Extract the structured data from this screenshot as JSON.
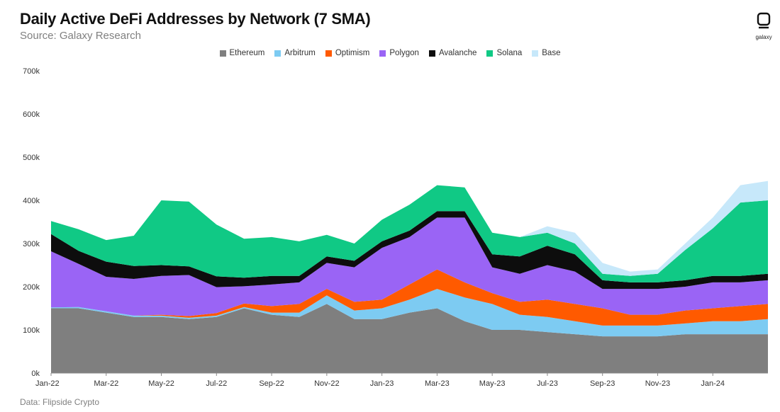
{
  "header": {
    "title": "Daily Active DeFi Addresses by Network (7 SMA)",
    "subtitle": "Source: Galaxy Research",
    "logo_text": "galaxy"
  },
  "footer": {
    "data_source": "Data: Flipside Crypto"
  },
  "chart_data": {
    "type": "area",
    "stacked": true,
    "title": "Daily Active DeFi Addresses by Network (7 SMA)",
    "xlabel": "",
    "ylabel": "",
    "ylim": [
      0,
      700000
    ],
    "yticks": [
      0,
      100000,
      200000,
      300000,
      400000,
      500000,
      600000,
      700000
    ],
    "ytick_labels": [
      "0k",
      "100k",
      "200k",
      "300k",
      "400k",
      "500k",
      "600k",
      "700k"
    ],
    "xtick_labels": [
      "Jan-22",
      "Mar-22",
      "May-22",
      "Jul-22",
      "Sep-22",
      "Nov-22",
      "Jan-23",
      "Mar-23",
      "May-23",
      "Jul-23",
      "Sep-23",
      "Nov-23",
      "Jan-24"
    ],
    "legend_position": "top-center",
    "grid": false,
    "x": [
      "Jan-22",
      "Feb-22",
      "Mar-22",
      "Apr-22",
      "May-22",
      "Jun-22",
      "Jul-22",
      "Aug-22",
      "Sep-22",
      "Oct-22",
      "Nov-22",
      "Dec-22",
      "Jan-23",
      "Feb-23",
      "Mar-23",
      "Apr-23",
      "May-23",
      "Jun-23",
      "Jul-23",
      "Aug-23",
      "Sep-23",
      "Oct-23",
      "Nov-23",
      "Dec-23",
      "Jan-24",
      "Feb-24",
      "Mar-24"
    ],
    "series": [
      {
        "name": "Ethereum",
        "color": "#7f7f7f",
        "values": [
          150000,
          150000,
          140000,
          130000,
          130000,
          125000,
          130000,
          150000,
          135000,
          130000,
          160000,
          125000,
          125000,
          140000,
          150000,
          120000,
          100000,
          100000,
          95000,
          90000,
          85000,
          85000,
          85000,
          90000,
          90000,
          90000,
          90000
        ]
      },
      {
        "name": "Arbitrum",
        "color": "#7dcbf2",
        "values": [
          2000,
          3000,
          3000,
          3000,
          3000,
          3000,
          3000,
          3000,
          5000,
          10000,
          20000,
          20000,
          25000,
          30000,
          45000,
          55000,
          60000,
          35000,
          35000,
          30000,
          25000,
          25000,
          25000,
          25000,
          30000,
          30000,
          35000
        ]
      },
      {
        "name": "Optimism",
        "color": "#ff5a00",
        "values": [
          0,
          0,
          0,
          0,
          2000,
          4000,
          6000,
          8000,
          15000,
          20000,
          15000,
          20000,
          20000,
          35000,
          45000,
          35000,
          25000,
          30000,
          40000,
          40000,
          40000,
          25000,
          25000,
          30000,
          30000,
          35000,
          35000
        ]
      },
      {
        "name": "Polygon",
        "color": "#9a64f5",
        "values": [
          130000,
          100000,
          80000,
          85000,
          90000,
          95000,
          60000,
          40000,
          50000,
          50000,
          60000,
          80000,
          120000,
          110000,
          120000,
          150000,
          60000,
          65000,
          80000,
          75000,
          45000,
          60000,
          60000,
          55000,
          60000,
          55000,
          55000
        ]
      },
      {
        "name": "Avalanche",
        "color": "#0d0d0d",
        "values": [
          40000,
          30000,
          35000,
          30000,
          25000,
          20000,
          25000,
          20000,
          20000,
          15000,
          15000,
          15000,
          15000,
          15000,
          15000,
          15000,
          30000,
          40000,
          45000,
          40000,
          20000,
          15000,
          15000,
          15000,
          15000,
          15000,
          15000
        ]
      },
      {
        "name": "Solana",
        "color": "#10c985",
        "values": [
          30000,
          50000,
          50000,
          70000,
          150000,
          150000,
          120000,
          90000,
          90000,
          80000,
          50000,
          40000,
          50000,
          60000,
          60000,
          55000,
          50000,
          45000,
          30000,
          25000,
          15000,
          15000,
          20000,
          70000,
          110000,
          170000,
          170000
        ]
      },
      {
        "name": "Base",
        "color": "#c7e8fa",
        "values": [
          0,
          0,
          0,
          0,
          0,
          0,
          0,
          0,
          0,
          0,
          0,
          0,
          0,
          0,
          0,
          0,
          0,
          0,
          15000,
          25000,
          25000,
          10000,
          10000,
          15000,
          25000,
          40000,
          45000
        ]
      }
    ]
  }
}
